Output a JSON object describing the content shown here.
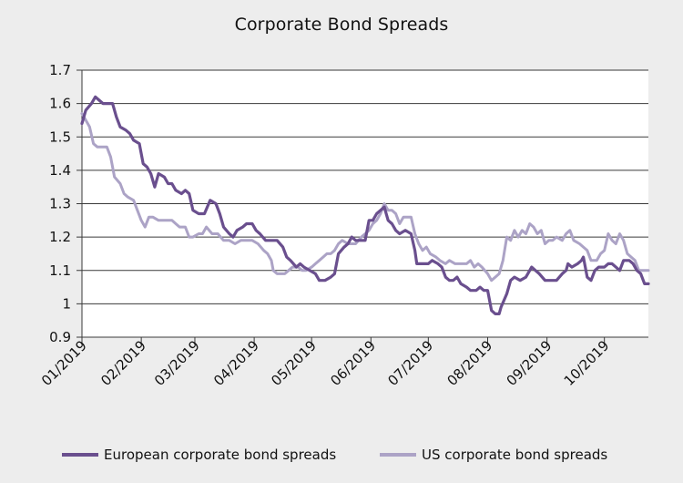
{
  "colors": {
    "background": "#ededed",
    "plot_background": "#ffffff",
    "grid": "#3a3a3a",
    "european": "#6a4f8e",
    "us": "#aca3c6"
  },
  "chart_data": {
    "type": "line",
    "title": "Corporate Bond Spreads",
    "xlabel": "",
    "ylabel": "",
    "ylim": [
      0.9,
      1.7
    ],
    "yticks": [
      0.9,
      1,
      1.1,
      1.2,
      1.3,
      1.4,
      1.5,
      1.6,
      1.7
    ],
    "ytick_labels": [
      "0.9",
      "1",
      "1.1",
      "1.2",
      "1.3",
      "1.4",
      "1.5",
      "1.6",
      "1.7"
    ],
    "xlim": [
      "2019-01-01",
      "2019-10-24"
    ],
    "xticks": [
      "2019-01-01",
      "2019-02-01",
      "2019-03-01",
      "2019-04-01",
      "2019-05-01",
      "2019-06-01",
      "2019-07-01",
      "2019-08-01",
      "2019-09-01",
      "2019-10-01"
    ],
    "xtick_labels": [
      "01/2019",
      "02/2019",
      "03/2019",
      "04/2019",
      "05/2019",
      "06/2019",
      "07/2019",
      "08/2019",
      "09/2019",
      "10/2019"
    ],
    "grid": "horizontal",
    "legend_position": "bottom",
    "series": [
      {
        "name": "European corporate bond spreads",
        "color": "#6a4f8e",
        "points": [
          [
            "2019-01-01",
            1.54
          ],
          [
            "2019-01-03",
            1.58
          ],
          [
            "2019-01-06",
            1.6
          ],
          [
            "2019-01-08",
            1.62
          ],
          [
            "2019-01-10",
            1.61
          ],
          [
            "2019-01-12",
            1.6
          ],
          [
            "2019-01-15",
            1.6
          ],
          [
            "2019-01-17",
            1.6
          ],
          [
            "2019-01-19",
            1.56
          ],
          [
            "2019-01-21",
            1.53
          ],
          [
            "2019-01-24",
            1.52
          ],
          [
            "2019-01-26",
            1.51
          ],
          [
            "2019-01-28",
            1.49
          ],
          [
            "2019-01-31",
            1.48
          ],
          [
            "2019-02-02",
            1.42
          ],
          [
            "2019-02-04",
            1.41
          ],
          [
            "2019-02-06",
            1.39
          ],
          [
            "2019-02-08",
            1.35
          ],
          [
            "2019-02-10",
            1.39
          ],
          [
            "2019-02-13",
            1.38
          ],
          [
            "2019-02-15",
            1.36
          ],
          [
            "2019-02-17",
            1.36
          ],
          [
            "2019-02-19",
            1.34
          ],
          [
            "2019-02-22",
            1.33
          ],
          [
            "2019-02-24",
            1.34
          ],
          [
            "2019-02-26",
            1.33
          ],
          [
            "2019-02-28",
            1.28
          ],
          [
            "2019-03-03",
            1.27
          ],
          [
            "2019-03-06",
            1.27
          ],
          [
            "2019-03-09",
            1.31
          ],
          [
            "2019-03-12",
            1.3
          ],
          [
            "2019-03-14",
            1.27
          ],
          [
            "2019-03-16",
            1.23
          ],
          [
            "2019-03-19",
            1.21
          ],
          [
            "2019-03-21",
            1.2
          ],
          [
            "2019-03-23",
            1.22
          ],
          [
            "2019-03-26",
            1.23
          ],
          [
            "2019-03-28",
            1.24
          ],
          [
            "2019-03-31",
            1.24
          ],
          [
            "2019-04-02",
            1.22
          ],
          [
            "2019-04-04",
            1.21
          ],
          [
            "2019-04-07",
            1.19
          ],
          [
            "2019-04-10",
            1.19
          ],
          [
            "2019-04-13",
            1.19
          ],
          [
            "2019-04-16",
            1.17
          ],
          [
            "2019-04-18",
            1.14
          ],
          [
            "2019-04-20",
            1.13
          ],
          [
            "2019-04-23",
            1.11
          ],
          [
            "2019-04-25",
            1.12
          ],
          [
            "2019-04-27",
            1.11
          ],
          [
            "2019-04-30",
            1.1
          ],
          [
            "2019-05-03",
            1.09
          ],
          [
            "2019-05-05",
            1.07
          ],
          [
            "2019-05-08",
            1.07
          ],
          [
            "2019-05-11",
            1.08
          ],
          [
            "2019-05-13",
            1.09
          ],
          [
            "2019-05-15",
            1.15
          ],
          [
            "2019-05-18",
            1.17
          ],
          [
            "2019-05-20",
            1.18
          ],
          [
            "2019-05-22",
            1.2
          ],
          [
            "2019-05-24",
            1.19
          ],
          [
            "2019-05-27",
            1.19
          ],
          [
            "2019-05-29",
            1.19
          ],
          [
            "2019-05-31",
            1.25
          ],
          [
            "2019-06-02",
            1.25
          ],
          [
            "2019-06-04",
            1.27
          ],
          [
            "2019-06-06",
            1.28
          ],
          [
            "2019-06-08",
            1.29
          ],
          [
            "2019-06-10",
            1.25
          ],
          [
            "2019-06-12",
            1.24
          ],
          [
            "2019-06-14",
            1.22
          ],
          [
            "2019-06-16",
            1.21
          ],
          [
            "2019-06-19",
            1.22
          ],
          [
            "2019-06-22",
            1.21
          ],
          [
            "2019-06-24",
            1.16
          ],
          [
            "2019-06-25",
            1.12
          ],
          [
            "2019-06-28",
            1.12
          ],
          [
            "2019-07-01",
            1.12
          ],
          [
            "2019-07-03",
            1.13
          ],
          [
            "2019-07-06",
            1.12
          ],
          [
            "2019-07-08",
            1.11
          ],
          [
            "2019-07-10",
            1.08
          ],
          [
            "2019-07-12",
            1.07
          ],
          [
            "2019-07-14",
            1.07
          ],
          [
            "2019-07-16",
            1.08
          ],
          [
            "2019-07-18",
            1.06
          ],
          [
            "2019-07-21",
            1.05
          ],
          [
            "2019-07-23",
            1.04
          ],
          [
            "2019-07-26",
            1.04
          ],
          [
            "2019-07-28",
            1.05
          ],
          [
            "2019-07-30",
            1.04
          ],
          [
            "2019-08-01",
            1.04
          ],
          [
            "2019-08-03",
            0.98
          ],
          [
            "2019-08-05",
            0.97
          ],
          [
            "2019-08-07",
            0.97
          ],
          [
            "2019-08-08",
            0.99
          ],
          [
            "2019-08-11",
            1.03
          ],
          [
            "2019-08-13",
            1.07
          ],
          [
            "2019-08-15",
            1.08
          ],
          [
            "2019-08-18",
            1.07
          ],
          [
            "2019-08-21",
            1.08
          ],
          [
            "2019-08-24",
            1.11
          ],
          [
            "2019-08-26",
            1.1
          ],
          [
            "2019-08-28",
            1.09
          ],
          [
            "2019-08-31",
            1.07
          ],
          [
            "2019-09-02",
            1.07
          ],
          [
            "2019-09-04",
            1.07
          ],
          [
            "2019-09-06",
            1.07
          ],
          [
            "2019-09-09",
            1.09
          ],
          [
            "2019-09-11",
            1.1
          ],
          [
            "2019-09-12",
            1.12
          ],
          [
            "2019-09-14",
            1.11
          ],
          [
            "2019-09-17",
            1.12
          ],
          [
            "2019-09-19",
            1.13
          ],
          [
            "2019-09-20",
            1.14
          ],
          [
            "2019-09-22",
            1.08
          ],
          [
            "2019-09-24",
            1.07
          ],
          [
            "2019-09-26",
            1.1
          ],
          [
            "2019-09-28",
            1.11
          ],
          [
            "2019-10-01",
            1.11
          ],
          [
            "2019-10-03",
            1.12
          ],
          [
            "2019-10-05",
            1.12
          ],
          [
            "2019-10-07",
            1.11
          ],
          [
            "2019-10-09",
            1.1
          ],
          [
            "2019-10-11",
            1.13
          ],
          [
            "2019-10-14",
            1.13
          ],
          [
            "2019-10-16",
            1.12
          ],
          [
            "2019-10-18",
            1.1
          ],
          [
            "2019-10-20",
            1.09
          ],
          [
            "2019-10-22",
            1.06
          ],
          [
            "2019-10-24",
            1.06
          ]
        ]
      },
      {
        "name": "US corporate bond spreads",
        "color": "#aca3c6",
        "points": [
          [
            "2019-01-01",
            1.57
          ],
          [
            "2019-01-03",
            1.55
          ],
          [
            "2019-01-05",
            1.53
          ],
          [
            "2019-01-07",
            1.48
          ],
          [
            "2019-01-09",
            1.47
          ],
          [
            "2019-01-11",
            1.47
          ],
          [
            "2019-01-14",
            1.47
          ],
          [
            "2019-01-16",
            1.44
          ],
          [
            "2019-01-18",
            1.38
          ],
          [
            "2019-01-21",
            1.36
          ],
          [
            "2019-01-23",
            1.33
          ],
          [
            "2019-01-25",
            1.32
          ],
          [
            "2019-01-28",
            1.31
          ],
          [
            "2019-01-30",
            1.28
          ],
          [
            "2019-02-01",
            1.25
          ],
          [
            "2019-02-03",
            1.23
          ],
          [
            "2019-02-05",
            1.26
          ],
          [
            "2019-02-07",
            1.26
          ],
          [
            "2019-02-10",
            1.25
          ],
          [
            "2019-02-12",
            1.25
          ],
          [
            "2019-02-14",
            1.25
          ],
          [
            "2019-02-17",
            1.25
          ],
          [
            "2019-02-19",
            1.24
          ],
          [
            "2019-02-21",
            1.23
          ],
          [
            "2019-02-24",
            1.23
          ],
          [
            "2019-02-26",
            1.2
          ],
          [
            "2019-02-28",
            1.2
          ],
          [
            "2019-03-03",
            1.21
          ],
          [
            "2019-03-05",
            1.21
          ],
          [
            "2019-03-07",
            1.23
          ],
          [
            "2019-03-10",
            1.21
          ],
          [
            "2019-03-13",
            1.21
          ],
          [
            "2019-03-16",
            1.19
          ],
          [
            "2019-03-19",
            1.19
          ],
          [
            "2019-03-22",
            1.18
          ],
          [
            "2019-03-25",
            1.19
          ],
          [
            "2019-03-28",
            1.19
          ],
          [
            "2019-03-31",
            1.19
          ],
          [
            "2019-04-03",
            1.18
          ],
          [
            "2019-04-06",
            1.16
          ],
          [
            "2019-04-08",
            1.15
          ],
          [
            "2019-04-10",
            1.13
          ],
          [
            "2019-04-11",
            1.1
          ],
          [
            "2019-04-13",
            1.09
          ],
          [
            "2019-04-15",
            1.09
          ],
          [
            "2019-04-17",
            1.09
          ],
          [
            "2019-04-19",
            1.1
          ],
          [
            "2019-04-21",
            1.11
          ],
          [
            "2019-04-24",
            1.11
          ],
          [
            "2019-04-26",
            1.1
          ],
          [
            "2019-04-28",
            1.1
          ],
          [
            "2019-05-01",
            1.11
          ],
          [
            "2019-05-03",
            1.12
          ],
          [
            "2019-05-05",
            1.13
          ],
          [
            "2019-05-07",
            1.14
          ],
          [
            "2019-05-09",
            1.15
          ],
          [
            "2019-05-11",
            1.15
          ],
          [
            "2019-05-13",
            1.16
          ],
          [
            "2019-05-15",
            1.18
          ],
          [
            "2019-05-17",
            1.19
          ],
          [
            "2019-05-20",
            1.18
          ],
          [
            "2019-05-22",
            1.18
          ],
          [
            "2019-05-24",
            1.18
          ],
          [
            "2019-05-27",
            1.2
          ],
          [
            "2019-05-29",
            1.21
          ],
          [
            "2019-05-31",
            1.22
          ],
          [
            "2019-06-02",
            1.24
          ],
          [
            "2019-06-04",
            1.25
          ],
          [
            "2019-06-06",
            1.27
          ],
          [
            "2019-06-08",
            1.3
          ],
          [
            "2019-06-10",
            1.28
          ],
          [
            "2019-06-12",
            1.28
          ],
          [
            "2019-06-14",
            1.27
          ],
          [
            "2019-06-16",
            1.24
          ],
          [
            "2019-06-18",
            1.26
          ],
          [
            "2019-06-20",
            1.26
          ],
          [
            "2019-06-22",
            1.26
          ],
          [
            "2019-06-24",
            1.21
          ],
          [
            "2019-06-26",
            1.18
          ],
          [
            "2019-06-28",
            1.16
          ],
          [
            "2019-06-30",
            1.17
          ],
          [
            "2019-07-02",
            1.15
          ],
          [
            "2019-07-05",
            1.14
          ],
          [
            "2019-07-07",
            1.13
          ],
          [
            "2019-07-10",
            1.12
          ],
          [
            "2019-07-12",
            1.13
          ],
          [
            "2019-07-15",
            1.12
          ],
          [
            "2019-07-18",
            1.12
          ],
          [
            "2019-07-21",
            1.12
          ],
          [
            "2019-07-23",
            1.13
          ],
          [
            "2019-07-25",
            1.11
          ],
          [
            "2019-07-27",
            1.12
          ],
          [
            "2019-07-29",
            1.11
          ],
          [
            "2019-08-01",
            1.09
          ],
          [
            "2019-08-03",
            1.07
          ],
          [
            "2019-08-05",
            1.08
          ],
          [
            "2019-08-07",
            1.09
          ],
          [
            "2019-08-09",
            1.13
          ],
          [
            "2019-08-11",
            1.2
          ],
          [
            "2019-08-13",
            1.19
          ],
          [
            "2019-08-15",
            1.22
          ],
          [
            "2019-08-17",
            1.2
          ],
          [
            "2019-08-19",
            1.22
          ],
          [
            "2019-08-21",
            1.21
          ],
          [
            "2019-08-23",
            1.24
          ],
          [
            "2019-08-25",
            1.23
          ],
          [
            "2019-08-27",
            1.21
          ],
          [
            "2019-08-29",
            1.22
          ],
          [
            "2019-08-31",
            1.18
          ],
          [
            "2019-09-02",
            1.19
          ],
          [
            "2019-09-04",
            1.19
          ],
          [
            "2019-09-06",
            1.2
          ],
          [
            "2019-09-09",
            1.19
          ],
          [
            "2019-09-11",
            1.21
          ],
          [
            "2019-09-13",
            1.22
          ],
          [
            "2019-09-15",
            1.19
          ],
          [
            "2019-09-18",
            1.18
          ],
          [
            "2019-09-20",
            1.17
          ],
          [
            "2019-09-22",
            1.16
          ],
          [
            "2019-09-24",
            1.13
          ],
          [
            "2019-09-27",
            1.13
          ],
          [
            "2019-09-29",
            1.15
          ],
          [
            "2019-10-01",
            1.16
          ],
          [
            "2019-10-03",
            1.21
          ],
          [
            "2019-10-05",
            1.19
          ],
          [
            "2019-10-07",
            1.18
          ],
          [
            "2019-10-09",
            1.21
          ],
          [
            "2019-10-11",
            1.19
          ],
          [
            "2019-10-13",
            1.15
          ],
          [
            "2019-10-15",
            1.14
          ],
          [
            "2019-10-17",
            1.13
          ],
          [
            "2019-10-19",
            1.1
          ],
          [
            "2019-10-22",
            1.1
          ],
          [
            "2019-10-24",
            1.1
          ]
        ]
      }
    ]
  }
}
